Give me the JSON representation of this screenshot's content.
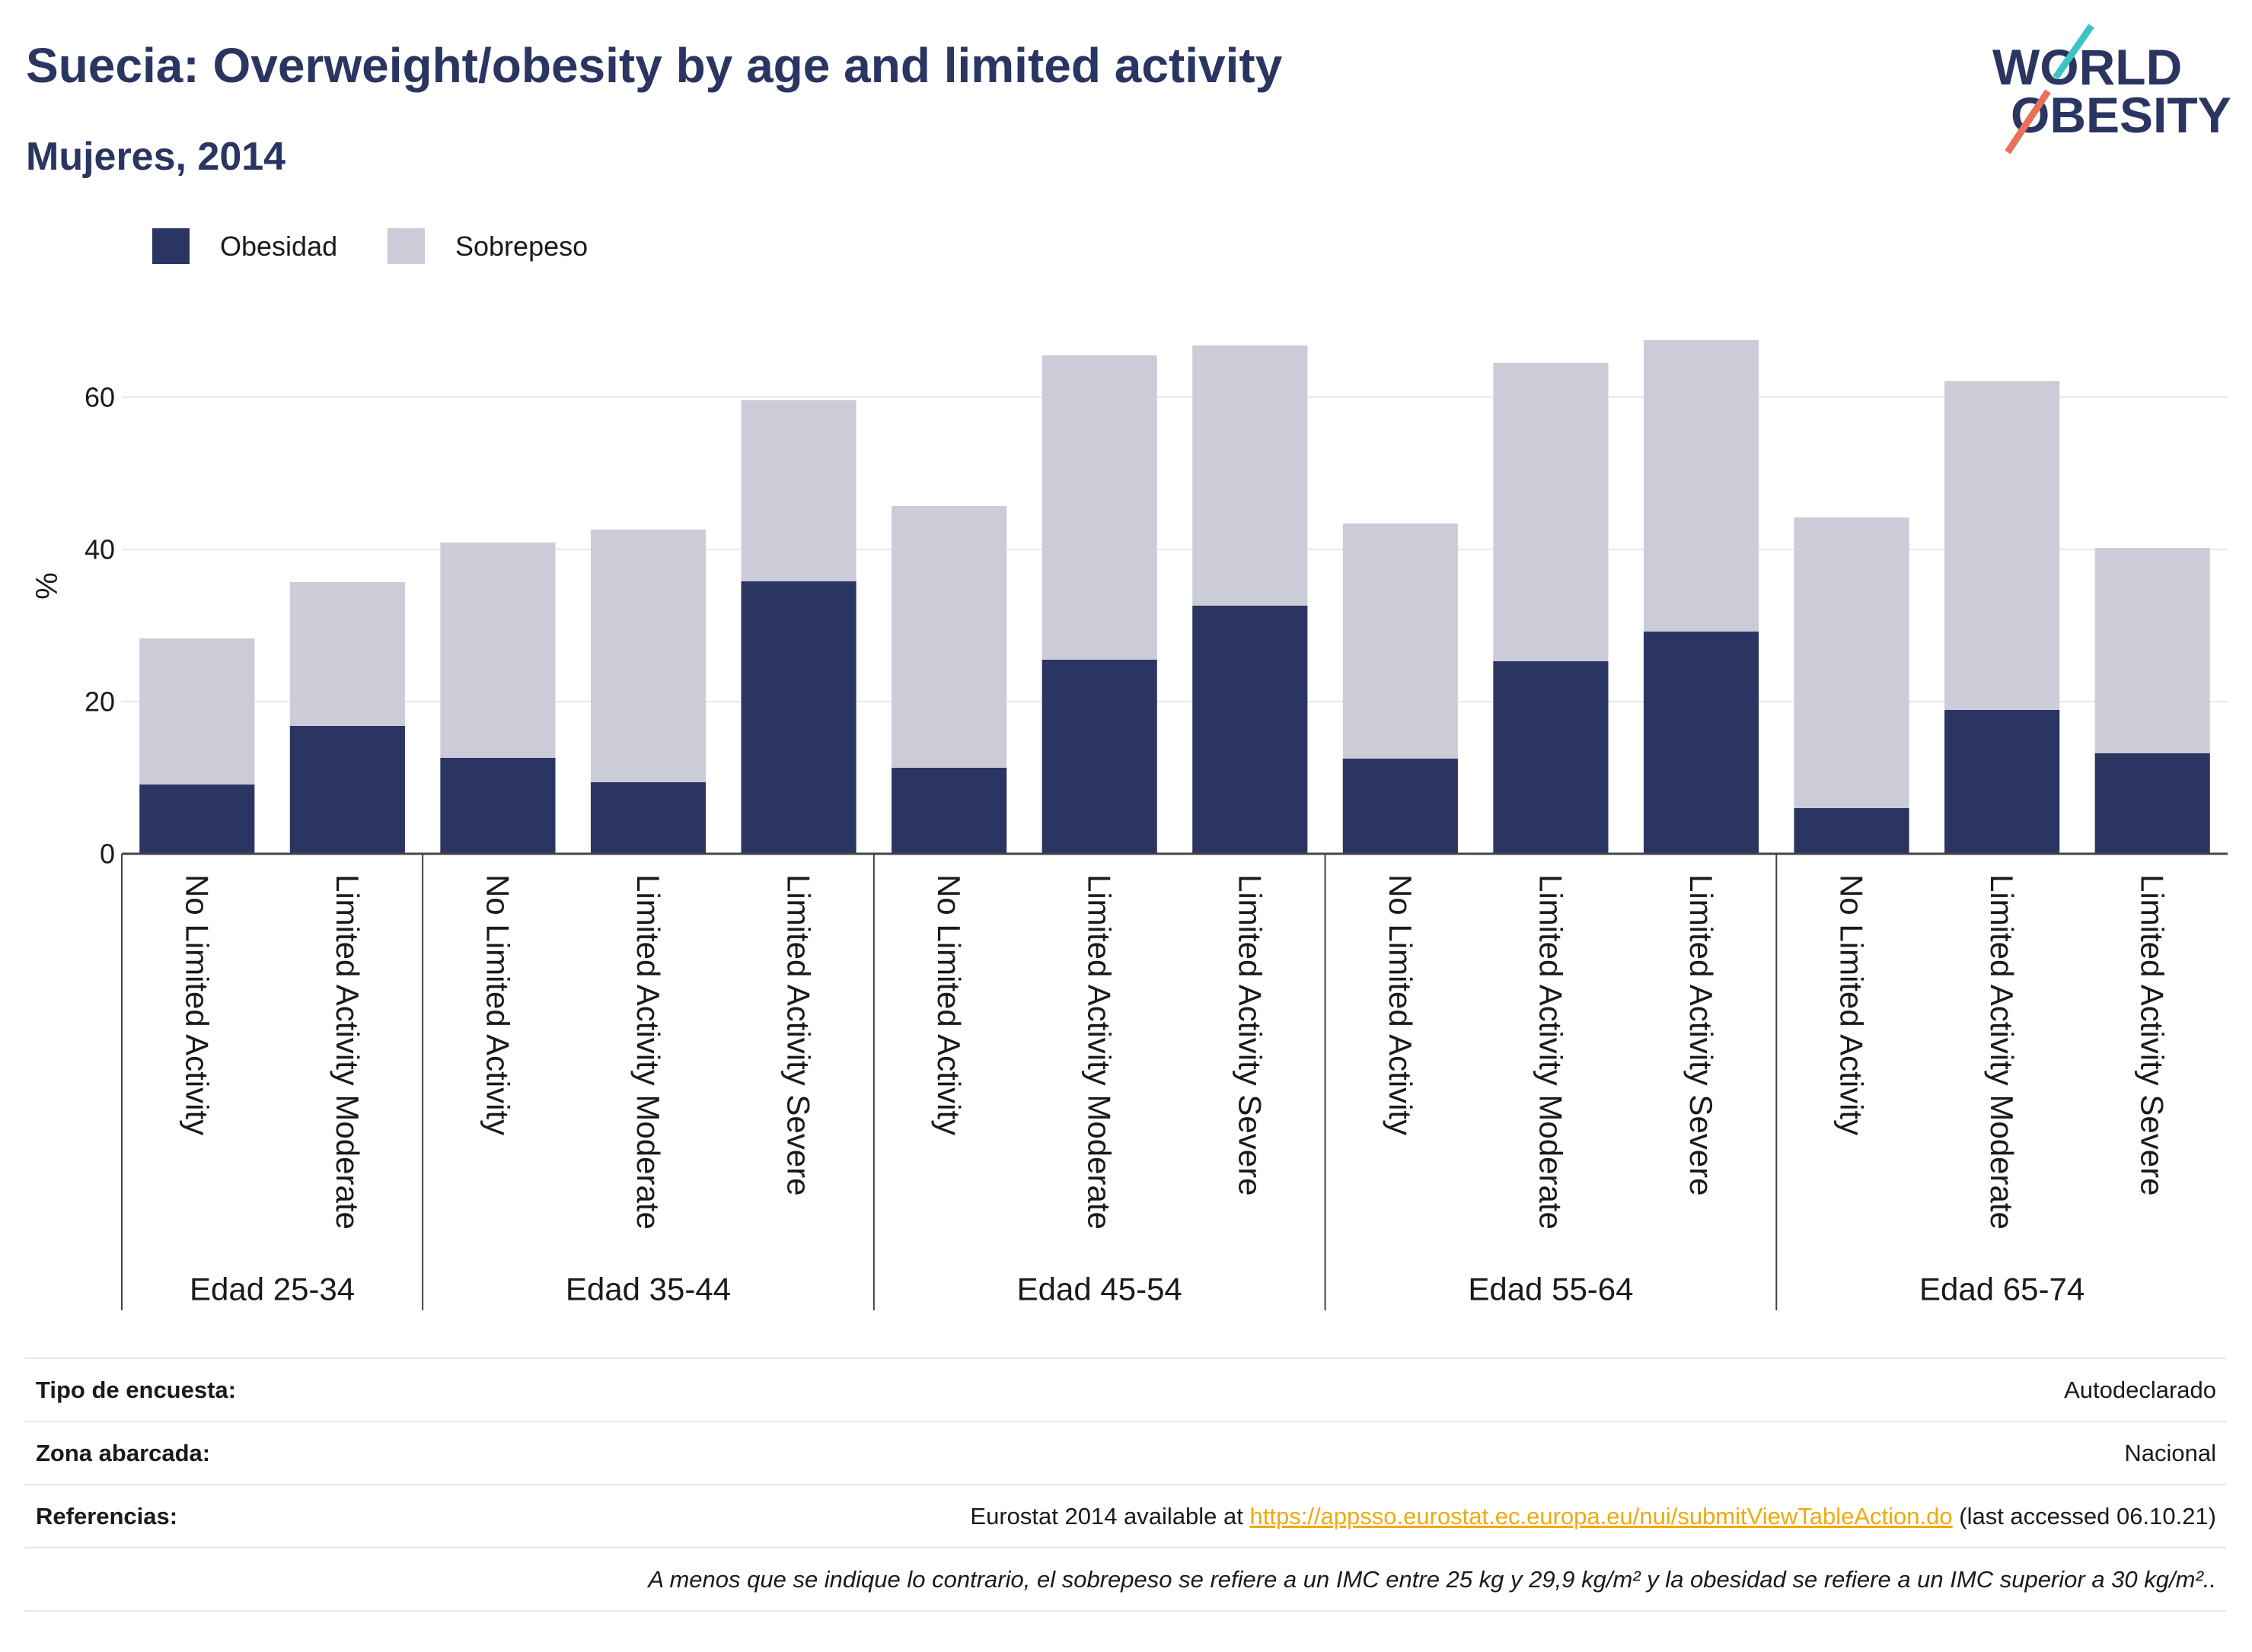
{
  "logo": {
    "line1": "WORLD",
    "line2": "OBESITY"
  },
  "colors": {
    "title": "#2a3561",
    "logo_slash_top": "#3cc3c4",
    "logo_slash_bottom": "#e8715c",
    "link": "#f0a90f",
    "axis": "#444444",
    "grid": "#e8e8ee",
    "rule": "#e5e6ee"
  },
  "chart_data": {
    "type": "bar",
    "barmode": "stack",
    "title": "Suecia: Overweight/obesity by age and limited activity",
    "subtitle": "Mujeres, 2014",
    "ylabel": "%",
    "ylim": [
      0,
      71
    ],
    "yticks": [
      0,
      20,
      40,
      60
    ],
    "grid": true,
    "legend_position": "top-left",
    "groups": [
      {
        "label": "Edad 25-34",
        "categories": [
          "No Limited Activity",
          "Limited Activity Moderate"
        ]
      },
      {
        "label": "Edad 35-44",
        "categories": [
          "No Limited Activity",
          "Limited Activity Moderate",
          "Limited Activity Severe"
        ]
      },
      {
        "label": "Edad 45-54",
        "categories": [
          "No Limited Activity",
          "Limited Activity Moderate",
          "Limited Activity Severe"
        ]
      },
      {
        "label": "Edad 55-64",
        "categories": [
          "No Limited Activity",
          "Limited Activity Moderate",
          "Limited Activity Severe"
        ]
      },
      {
        "label": "Edad 65-74",
        "categories": [
          "No Limited Activity",
          "Limited Activity Moderate",
          "Limited Activity Severe"
        ]
      }
    ],
    "series": [
      {
        "name": "Obesidad",
        "color": "#2a3561",
        "values": [
          9.1,
          16.8,
          12.6,
          9.4,
          35.8,
          11.3,
          25.5,
          32.6,
          12.5,
          25.3,
          29.2,
          6.0,
          18.9,
          13.2
        ]
      },
      {
        "name": "Sobrepeso",
        "color": "#cbccd8",
        "values": [
          19.2,
          18.9,
          28.3,
          33.2,
          23.8,
          34.4,
          40.0,
          34.2,
          30.9,
          39.2,
          38.3,
          38.2,
          43.2,
          27.0
        ]
      }
    ]
  },
  "footer": {
    "rows": [
      {
        "label": "Tipo de encuesta:",
        "value": "Autodeclarado"
      },
      {
        "label": "Zona abarcada:",
        "value": "Nacional"
      },
      {
        "label": "Referencias:",
        "value_prefix": "Eurostat 2014 available at ",
        "link": "https://appsso.eurostat.ec.europa.eu/nui/submitViewTableAction.do",
        "value_suffix": " (last accessed 06.10.21)"
      }
    ],
    "note": "A menos que se indique lo contrario, el sobrepeso se refiere a un IMC entre 25 kg y 29,9 kg/m² y la obesidad se refiere a un IMC superior a 30 kg/m².."
  }
}
